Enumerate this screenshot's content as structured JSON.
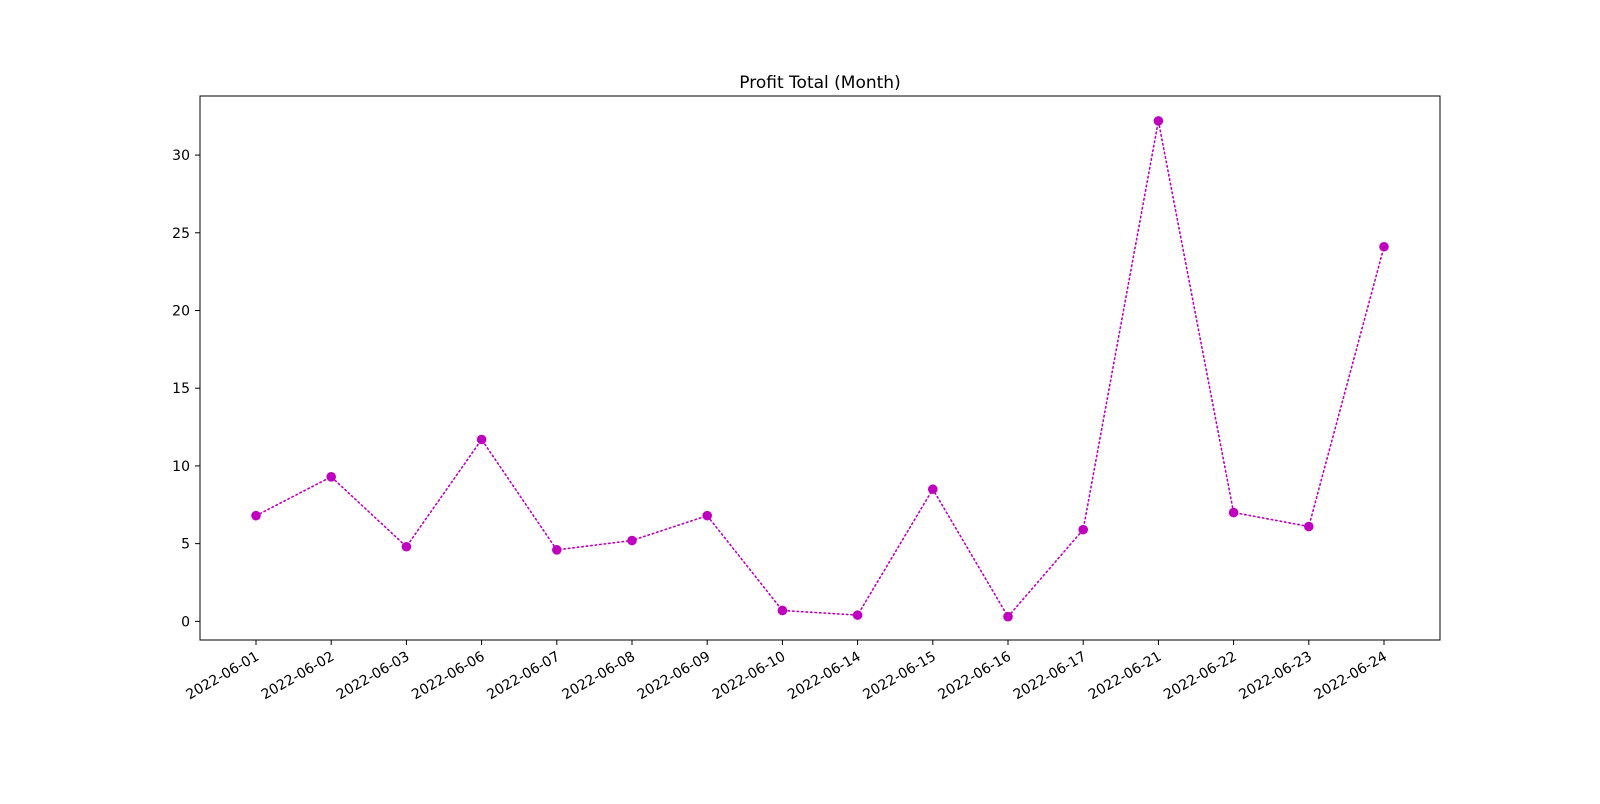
{
  "chart_data": {
    "type": "line",
    "title": "Profit Total (Month)",
    "xlabel": "",
    "ylabel": "",
    "categories": [
      "2022-06-01",
      "2022-06-02",
      "2022-06-03",
      "2022-06-06",
      "2022-06-07",
      "2022-06-08",
      "2022-06-09",
      "2022-06-10",
      "2022-06-14",
      "2022-06-15",
      "2022-06-16",
      "2022-06-17",
      "2022-06-21",
      "2022-06-22",
      "2022-06-23",
      "2022-06-24"
    ],
    "series": [
      {
        "values": [
          6.8,
          9.3,
          4.8,
          11.7,
          4.6,
          5.2,
          6.8,
          0.7,
          0.4,
          8.5,
          0.3,
          5.9,
          32.2,
          7.0,
          6.1,
          24.1
        ],
        "color": "#bf00bf",
        "line_style": "dotted",
        "marker": "circle"
      }
    ],
    "ylim": [
      -1.2,
      33.8
    ],
    "yticks": [
      0,
      5,
      10,
      15,
      20,
      25,
      30
    ],
    "grid": false,
    "legend": "none"
  }
}
